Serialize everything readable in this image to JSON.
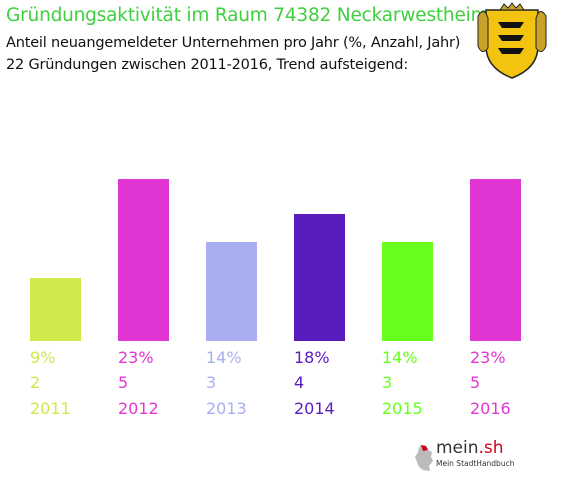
{
  "header": {
    "title": "Gründungsaktivität im Raum 74382 Neckarwestheim",
    "subtitle_1": "Anteil neuangemeldeter Unternehmen pro Jahr (%, Anzahl, Jahr)",
    "subtitle_2": "22 Gründungen zwischen 2011-2016, Trend aufsteigend:"
  },
  "logo": {
    "brand": "mein",
    "tld": ".sh",
    "tagline": "Mein StadtHandbuch"
  },
  "icons": {
    "crest": "baden-wuerttemberg-coat-of-arms-icon",
    "logo_map": "germany-map-icon"
  },
  "chart_data": {
    "type": "bar",
    "title": "Gründungsaktivität im Raum 74382 Neckarwestheim",
    "categories": [
      "2011",
      "2012",
      "2013",
      "2014",
      "2015",
      "2016"
    ],
    "values": [
      9,
      23,
      14,
      18,
      14,
      23
    ],
    "percent_labels": [
      "9%",
      "23%",
      "14%",
      "18%",
      "14%",
      "23%"
    ],
    "counts": [
      2,
      5,
      3,
      4,
      3,
      5
    ],
    "colors": [
      "#cdea4a",
      "#e236d4",
      "#a9aef2",
      "#5a1cbc",
      "#66ff1e",
      "#e236d4"
    ],
    "ylim": [
      0,
      23
    ],
    "grid": false,
    "legend": "none",
    "total": "22"
  }
}
